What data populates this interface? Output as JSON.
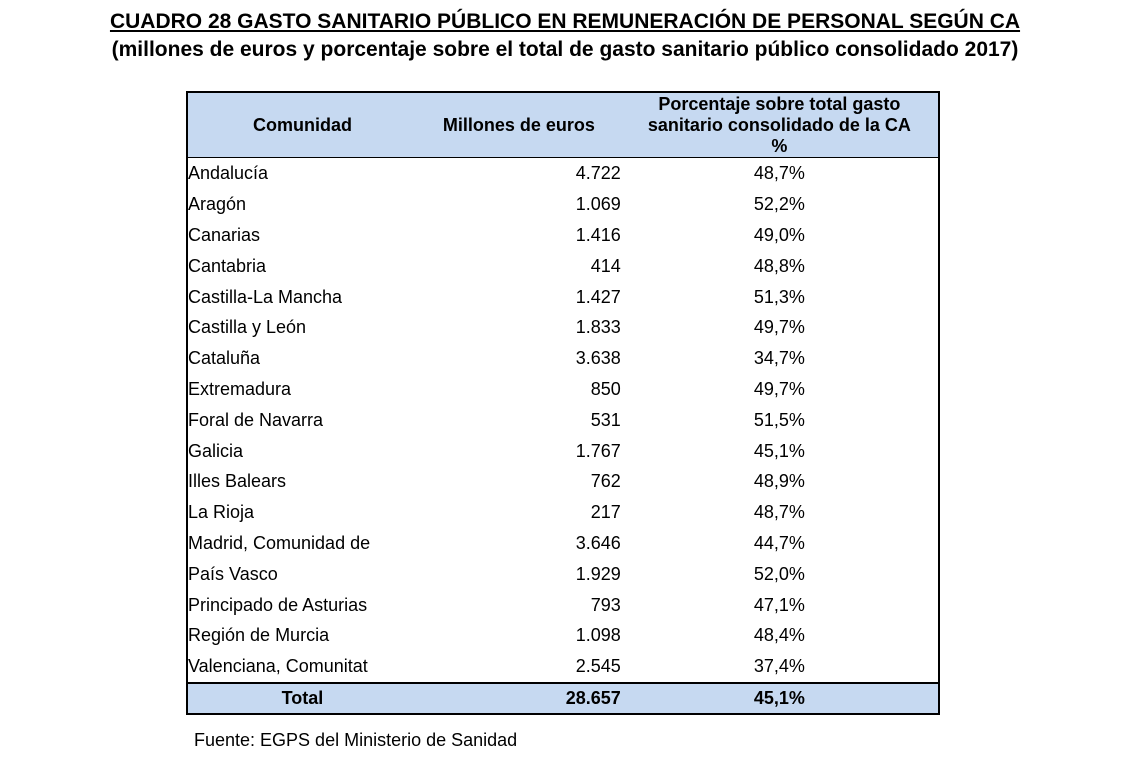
{
  "title": "CUADRO 28 GASTO SANITARIO PÚBLICO EN REMUNERACIÓN DE PERSONAL SEGÚN CA",
  "subtitle": "(millones de euros y porcentaje sobre el total de gasto sanitario público consolidado 2017)",
  "table": {
    "headers": {
      "comunidad": "Comunidad",
      "millones": "Millones de euros",
      "porcentaje_line1": "Porcentaje sobre total gasto",
      "porcentaje_line2": "sanitario consolidado de la CA",
      "porcentaje_line3": "%"
    },
    "rows": [
      {
        "comunidad": "Andalucía",
        "millones": "4.722",
        "porcentaje": "48,7%"
      },
      {
        "comunidad": "Aragón",
        "millones": "1.069",
        "porcentaje": "52,2%"
      },
      {
        "comunidad": "Canarias",
        "millones": "1.416",
        "porcentaje": "49,0%"
      },
      {
        "comunidad": "Cantabria",
        "millones": "414",
        "porcentaje": "48,8%"
      },
      {
        "comunidad": "Castilla-La Mancha",
        "millones": "1.427",
        "porcentaje": "51,3%"
      },
      {
        "comunidad": "Castilla y León",
        "millones": "1.833",
        "porcentaje": "49,7%"
      },
      {
        "comunidad": "Cataluña",
        "millones": "3.638",
        "porcentaje": "34,7%"
      },
      {
        "comunidad": "Extremadura",
        "millones": "850",
        "porcentaje": "49,7%"
      },
      {
        "comunidad": "Foral de Navarra",
        "millones": "531",
        "porcentaje": "51,5%"
      },
      {
        "comunidad": "Galicia",
        "millones": "1.767",
        "porcentaje": "45,1%"
      },
      {
        "comunidad": "Illes Balears",
        "millones": "762",
        "porcentaje": "48,9%"
      },
      {
        "comunidad": "La Rioja",
        "millones": "217",
        "porcentaje": "48,7%"
      },
      {
        "comunidad": "Madrid, Comunidad de",
        "millones": "3.646",
        "porcentaje": "44,7%"
      },
      {
        "comunidad": "País Vasco",
        "millones": "1.929",
        "porcentaje": "52,0%"
      },
      {
        "comunidad": "Principado de Asturias",
        "millones": "793",
        "porcentaje": "47,1%"
      },
      {
        "comunidad": "Región de Murcia",
        "millones": "1.098",
        "porcentaje": "48,4%"
      },
      {
        "comunidad": "Valenciana, Comunitat",
        "millones": "2.545",
        "porcentaje": "37,4%"
      }
    ],
    "total": {
      "comunidad": "Total",
      "millones": "28.657",
      "porcentaje": "45,1%"
    }
  },
  "source": "Fuente: EGPS del Ministerio de Sanidad",
  "colors": {
    "header_fill": "#c6d9f1",
    "border": "#000000"
  }
}
